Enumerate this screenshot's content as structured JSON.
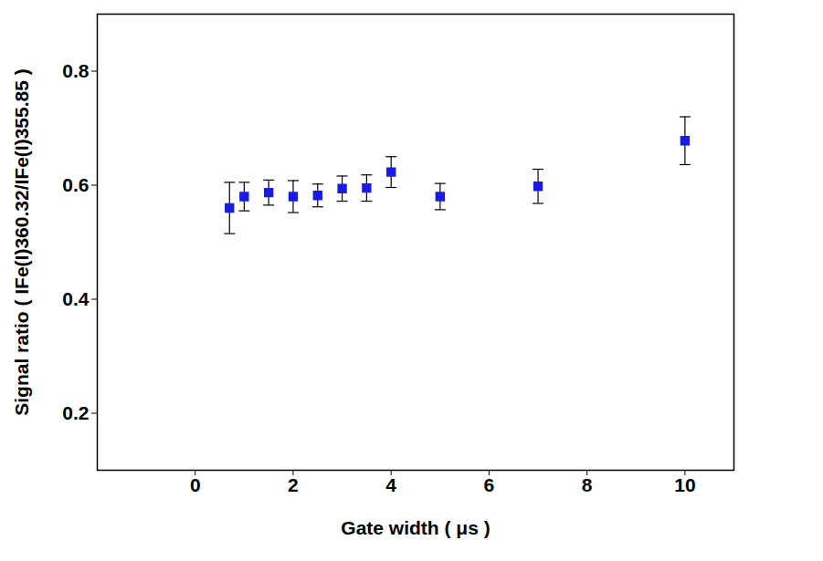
{
  "chart_data": {
    "type": "scatter",
    "x_label": "Gate width ( μs )",
    "y_label": "Signal ratio ( IFe(I)360.32/IFe(I)355.85 )",
    "x": [
      0.7,
      1,
      1.5,
      2,
      2.5,
      3,
      3.5,
      4,
      5,
      7,
      10
    ],
    "values": [
      0.56,
      0.58,
      0.587,
      0.58,
      0.582,
      0.594,
      0.595,
      0.623,
      0.58,
      0.598,
      0.678
    ],
    "errors": [
      0.045,
      0.025,
      0.022,
      0.028,
      0.02,
      0.022,
      0.023,
      0.027,
      0.023,
      0.03,
      0.042
    ],
    "color": "#1a1ae6",
    "marker": "square",
    "xlim": [
      -2,
      11
    ],
    "xticks": [
      0,
      2,
      4,
      6,
      8,
      10
    ],
    "ylim": [
      0.1,
      0.9
    ],
    "yticks": [
      0.2,
      0.4,
      0.6,
      0.8
    ],
    "grid": false
  }
}
